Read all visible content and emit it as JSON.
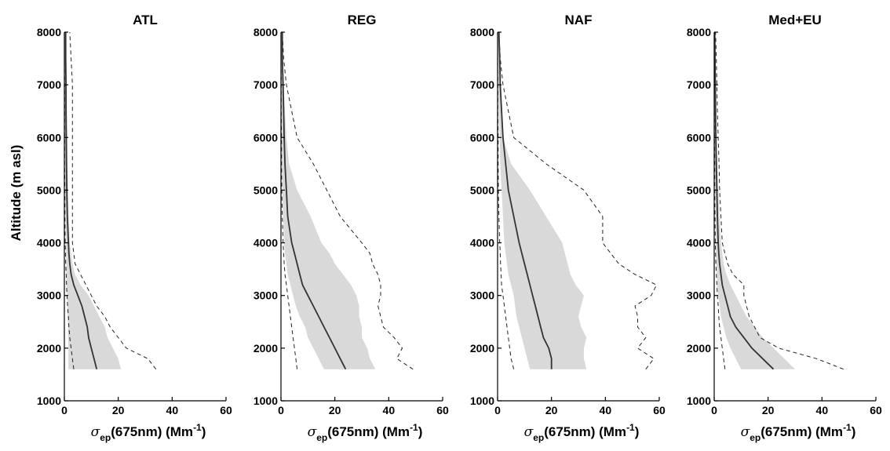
{
  "chart_data": {
    "type": "line",
    "ylabel": "Altitude (m asl)",
    "xlabel_sigma": "σ",
    "xlabel_sub": "ep",
    "xlabel_main": "(675nm) (Mm",
    "xlabel_sup": "-1",
    "xlabel_close": ")",
    "xlim": [
      0,
      60
    ],
    "ylim": [
      1000,
      8000
    ],
    "xticks": [
      0,
      20,
      40,
      60
    ],
    "yticks": [
      1000,
      2000,
      3000,
      4000,
      5000,
      6000,
      7000,
      8000
    ],
    "colors": {
      "median": "#333333",
      "band": "#d9d9d9",
      "dashed": "#222222"
    },
    "panels": [
      {
        "title": "ATL",
        "altitude": [
          1600,
          1800,
          2000,
          2200,
          2400,
          2600,
          2800,
          3000,
          3200,
          3400,
          3600,
          3800,
          4000,
          4500,
          5000,
          5500,
          6000,
          6500,
          7000,
          7500,
          8000
        ],
        "median": [
          12,
          11,
          10,
          9,
          8.5,
          7.5,
          6.5,
          5,
          3.5,
          2.5,
          2,
          1.7,
          1.5,
          1.1,
          0.9,
          0.8,
          0.7,
          0.6,
          0.6,
          0.5,
          0.5
        ],
        "p_low": [
          1.5,
          1.5,
          1.5,
          1.4,
          1.3,
          1.2,
          1.2,
          1,
          0.9,
          0.8,
          0.7,
          0.6,
          0.5,
          0.4,
          0.3,
          0.2,
          0.2,
          0.2,
          0.1,
          0.1,
          0.1
        ],
        "p_high": [
          21,
          20,
          18,
          16,
          15,
          13,
          11,
          9,
          6,
          4,
          3,
          2.5,
          2,
          1.6,
          1.4,
          1.2,
          1.1,
          1,
          0.9,
          0.8,
          0.7
        ],
        "min": [
          3.5,
          3,
          2.5,
          2,
          1.7,
          1.5,
          1.2,
          1,
          0.8,
          0.7,
          0.5,
          0.4,
          0.3,
          0.2,
          0.2,
          0.1,
          0.1,
          0.1,
          0.1,
          0,
          0
        ],
        "max": [
          34,
          31,
          23,
          20,
          17,
          15,
          12,
          10,
          8,
          6,
          4,
          3.5,
          3,
          3,
          3,
          3,
          3,
          3,
          3,
          2.5,
          2
        ]
      },
      {
        "title": "REG",
        "altitude": [
          1600,
          1800,
          2000,
          2200,
          2400,
          2600,
          2800,
          3000,
          3200,
          3400,
          3600,
          3800,
          4000,
          4500,
          5000,
          5500,
          6000,
          6500,
          7000,
          7500,
          8000
        ],
        "median": [
          24,
          22,
          20,
          18,
          16,
          14,
          12,
          10,
          8,
          7,
          6,
          5,
          4,
          2.5,
          2,
          1.5,
          1.2,
          1,
          0.8,
          0.5,
          0.5
        ],
        "p_low": [
          16,
          14,
          12,
          10,
          9,
          7,
          5.5,
          4.5,
          3.5,
          2.5,
          2,
          1.5,
          1.2,
          0.8,
          0.5,
          0.3,
          0.2,
          0.2,
          0.1,
          0.1,
          0.1
        ],
        "p_high": [
          35,
          33,
          32,
          30,
          30,
          29,
          29,
          28,
          26,
          23,
          20,
          18,
          15,
          11,
          6,
          3,
          2,
          1.5,
          1,
          0.8,
          0.5
        ],
        "min": [
          6,
          5.5,
          5,
          4.5,
          4,
          3.5,
          3,
          2.5,
          2,
          1.5,
          1.2,
          1,
          0.8,
          0.5,
          0.3,
          0.2,
          0.2,
          0.1,
          0.1,
          0,
          0
        ],
        "max": [
          49,
          43,
          45,
          42,
          38,
          37,
          36,
          37,
          37,
          36,
          34,
          33,
          30,
          22,
          17,
          12,
          6,
          4,
          2,
          1,
          0.5
        ]
      },
      {
        "title": "NAF",
        "altitude": [
          1600,
          1800,
          2000,
          2200,
          2400,
          2600,
          2800,
          3000,
          3200,
          3400,
          3600,
          3800,
          4000,
          4500,
          5000,
          5500,
          6000,
          6500,
          7000,
          7500,
          8000
        ],
        "median": [
          20,
          20,
          19,
          17,
          16,
          15,
          14,
          13,
          12,
          11,
          10,
          9,
          8,
          6,
          4,
          3,
          2,
          1.5,
          1,
          0.8,
          0.5
        ],
        "p_low": [
          12,
          11,
          10,
          9,
          8,
          7,
          6.5,
          6,
          5,
          4,
          3.5,
          3,
          2.5,
          2,
          1.5,
          1,
          0.8,
          0.5,
          0.3,
          0.2,
          0.1
        ],
        "p_high": [
          33,
          32,
          32,
          33,
          31,
          30,
          31,
          32,
          29,
          27,
          26,
          25,
          24,
          18,
          12,
          5,
          2,
          1.5,
          1,
          0.8,
          0.5
        ],
        "min": [
          6,
          5,
          4.5,
          4,
          3.5,
          3,
          2.5,
          2,
          1.5,
          1.3,
          1.1,
          1,
          0.8,
          0.5,
          0.3,
          0.2,
          0.2,
          0.1,
          0.1,
          0,
          0
        ],
        "max": [
          55,
          58,
          52,
          55,
          52,
          52,
          51,
          57,
          59,
          51,
          45,
          42,
          39,
          39,
          32,
          18,
          6,
          4,
          2,
          1,
          0.5
        ]
      },
      {
        "title": "Med+EU",
        "altitude": [
          1600,
          1800,
          2000,
          2200,
          2400,
          2600,
          2800,
          3000,
          3200,
          3400,
          3600,
          3800,
          4000,
          4500,
          5000,
          5500,
          6000,
          6500,
          7000,
          7500,
          8000
        ],
        "median": [
          22,
          18,
          14,
          11,
          8,
          6,
          5,
          4,
          3,
          2.5,
          2,
          1.7,
          1.5,
          1.2,
          1,
          0.8,
          0.6,
          0.5,
          0.4,
          0.3,
          0.2
        ],
        "p_low": [
          10,
          8,
          6,
          4.5,
          3.5,
          2.5,
          2,
          1.5,
          1.2,
          1,
          0.8,
          0.6,
          0.5,
          0.4,
          0.3,
          0.2,
          0.1,
          0.1,
          0.1,
          0,
          0
        ],
        "p_high": [
          30,
          26,
          22,
          18,
          15,
          12,
          10,
          8,
          6,
          4.5,
          3.5,
          3,
          2.5,
          2,
          1.5,
          1.2,
          1,
          0.8,
          0.6,
          0.5,
          0.4
        ],
        "min": [
          4,
          3.5,
          3,
          2.5,
          2,
          1.7,
          1.5,
          1.2,
          1,
          0.8,
          0.6,
          0.5,
          0.4,
          0.3,
          0.2,
          0.2,
          0.1,
          0.1,
          0,
          0,
          0
        ],
        "max": [
          48,
          38,
          24,
          17,
          15,
          13,
          12,
          11,
          11,
          7,
          5,
          4,
          3,
          2.5,
          2,
          1.8,
          1.5,
          1.2,
          1,
          0.8,
          0.5
        ]
      }
    ]
  }
}
